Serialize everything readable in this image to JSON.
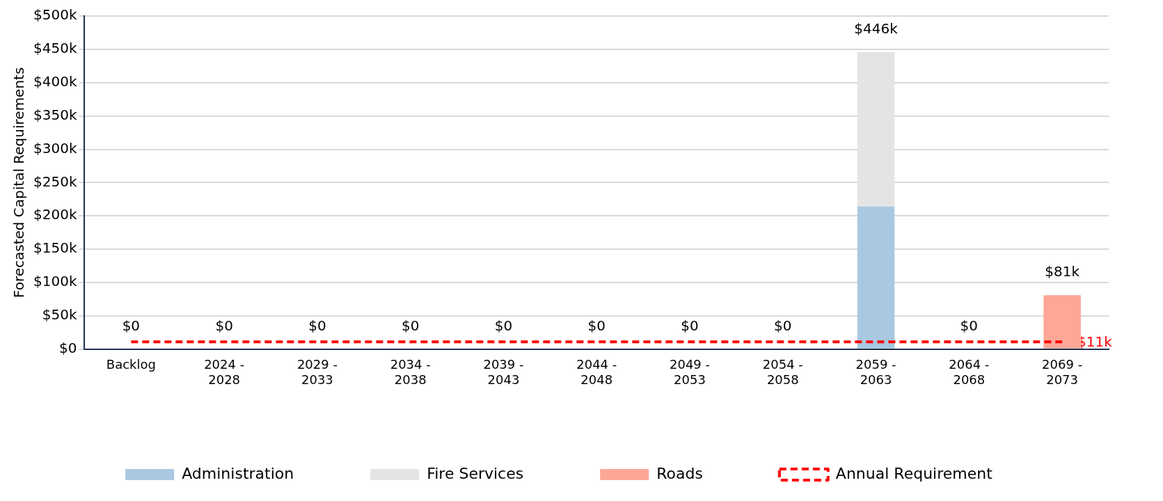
{
  "chart_data": {
    "type": "bar",
    "ylabel": "Forecasted Capital Requirements",
    "categories": [
      "Backlog",
      "2024 - 2028",
      "2029 - 2033",
      "2034 - 2038",
      "2039 - 2043",
      "2044 - 2048",
      "2049 - 2053",
      "2054 - 2058",
      "2059 - 2063",
      "2064 - 2068",
      "2069 - 2073"
    ],
    "series": [
      {
        "name": "Administration",
        "color": "#a9c8e1",
        "values": [
          0,
          0,
          0,
          0,
          0,
          0,
          0,
          0,
          214000,
          0,
          0
        ]
      },
      {
        "name": "Fire Services",
        "color": "#e4e4e4",
        "values": [
          0,
          0,
          0,
          0,
          0,
          0,
          0,
          0,
          232000,
          0,
          0
        ]
      },
      {
        "name": "Roads",
        "color": "#fda896",
        "values": [
          0,
          0,
          0,
          0,
          0,
          0,
          0,
          0,
          0,
          0,
          81000
        ]
      },
      {
        "name": "Annual Requirement",
        "type": "line",
        "color": "#ff0000",
        "line_style": "dashed",
        "values": [
          11000,
          11000,
          11000,
          11000,
          11000,
          11000,
          11000,
          11000,
          11000,
          11000,
          11000
        ],
        "value_labels": [
          null,
          null,
          null,
          null,
          null,
          null,
          null,
          null,
          null,
          null,
          "$11k"
        ]
      }
    ],
    "stacked": true,
    "totals": [
      "$0",
      "$0",
      "$0",
      "$0",
      "$0",
      "$0",
      "$0",
      "$0",
      "$446k",
      "$0",
      "$81k"
    ],
    "ylim": [
      0,
      500000
    ],
    "yticks": [
      {
        "value": 0,
        "label": "$0"
      },
      {
        "value": 50000,
        "label": "$50k"
      },
      {
        "value": 100000,
        "label": "$100k"
      },
      {
        "value": 150000,
        "label": "$150k"
      },
      {
        "value": 200000,
        "label": "$200k"
      },
      {
        "value": 250000,
        "label": "$250k"
      },
      {
        "value": 300000,
        "label": "$300k"
      },
      {
        "value": 350000,
        "label": "$350k"
      },
      {
        "value": 400000,
        "label": "$400k"
      },
      {
        "value": 450000,
        "label": "$450k"
      },
      {
        "value": 500000,
        "label": "$500k"
      }
    ],
    "grid": "y",
    "legend": "bottom"
  }
}
